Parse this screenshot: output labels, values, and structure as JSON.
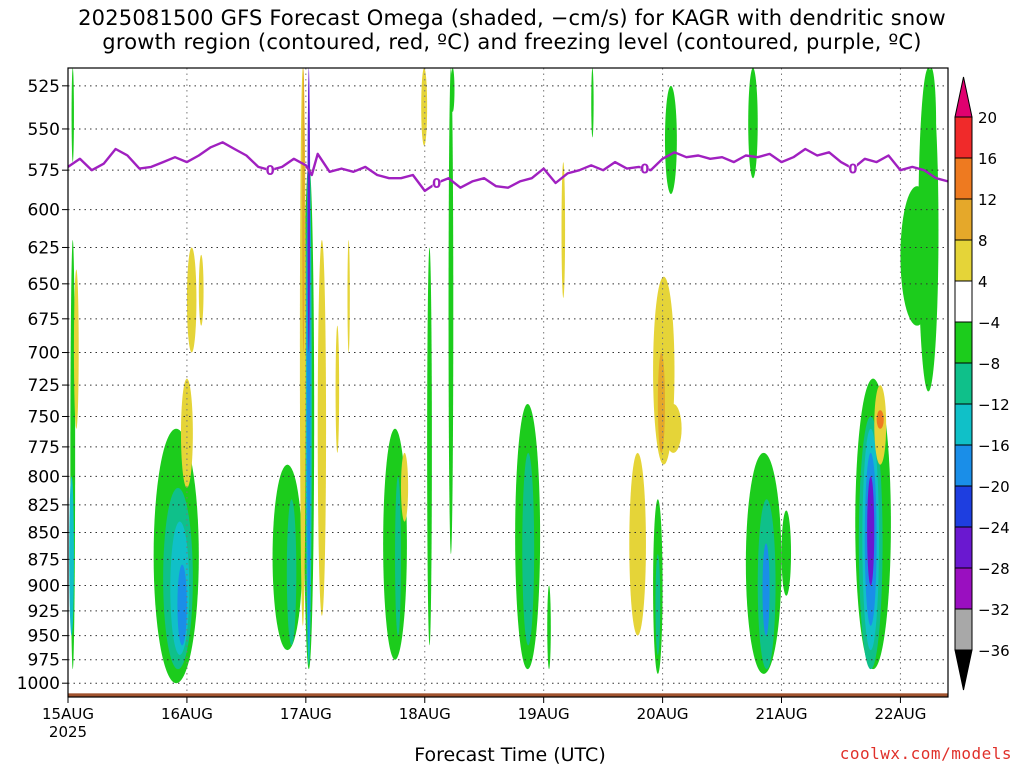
{
  "title_line1": "2025081500 GFS Forecast Omega (shaded, −cm/s) for KAGR with dendritic snow",
  "title_line2": "growth region (contoured, red, ºC) and freezing level (contoured, purple, ºC)",
  "credit": "coolwx.com/models",
  "chart_data": {
    "type": "heatmap",
    "xlabel": "Forecast Time (UTC)",
    "ylabel": "",
    "x_ticks": [
      "15AUG",
      "16AUG",
      "17AUG",
      "18AUG",
      "19AUG",
      "20AUG",
      "21AUG",
      "22AUG"
    ],
    "x_year": "2025",
    "xlim_days": [
      0,
      7.4
    ],
    "y_ticks": [
      525,
      550,
      575,
      600,
      625,
      650,
      675,
      700,
      725,
      750,
      775,
      800,
      825,
      850,
      875,
      900,
      925,
      950,
      975,
      1000
    ],
    "ylim_hPa": [
      515,
      1015
    ],
    "y_scale": "log-pressure",
    "grid": true,
    "colorbar": {
      "levels": [
        "20",
        "16",
        "12",
        "8",
        "4",
        "−4",
        "−8",
        "−12",
        "−16",
        "−20",
        "−24",
        "−28",
        "−32",
        "−36"
      ],
      "colors": [
        "#e0006f",
        "#f02a2a",
        "#ee7a20",
        "#e5a82a",
        "#e5d438",
        "#ffffff",
        "#1ccc1c",
        "#0fc08a",
        "#10c0c8",
        "#1a8ee8",
        "#1e3ee0",
        "#6a18d0",
        "#9a0fc0",
        "#a8a8a8",
        "#000000"
      ]
    },
    "freezing_level": {
      "color": "#a020c0",
      "label": "0",
      "label_days": [
        1.7,
        3.1,
        4.85,
        6.6
      ],
      "points": [
        [
          0.0,
          573
        ],
        [
          0.1,
          568
        ],
        [
          0.2,
          575
        ],
        [
          0.3,
          571
        ],
        [
          0.4,
          562
        ],
        [
          0.5,
          566
        ],
        [
          0.6,
          574
        ],
        [
          0.7,
          573
        ],
        [
          0.8,
          570
        ],
        [
          0.9,
          567
        ],
        [
          1.0,
          570
        ],
        [
          1.1,
          566
        ],
        [
          1.2,
          561
        ],
        [
          1.3,
          558
        ],
        [
          1.4,
          562
        ],
        [
          1.5,
          566
        ],
        [
          1.6,
          573
        ],
        [
          1.7,
          575
        ],
        [
          1.8,
          573
        ],
        [
          1.9,
          568
        ],
        [
          2.0,
          572
        ],
        [
          2.05,
          578
        ],
        [
          2.1,
          565
        ],
        [
          2.2,
          576
        ],
        [
          2.3,
          574
        ],
        [
          2.4,
          576
        ],
        [
          2.5,
          573
        ],
        [
          2.6,
          578
        ],
        [
          2.7,
          580
        ],
        [
          2.8,
          580
        ],
        [
          2.9,
          578
        ],
        [
          3.0,
          588
        ],
        [
          3.1,
          583
        ],
        [
          3.2,
          580
        ],
        [
          3.3,
          586
        ],
        [
          3.4,
          582
        ],
        [
          3.5,
          580
        ],
        [
          3.6,
          585
        ],
        [
          3.7,
          586
        ],
        [
          3.8,
          582
        ],
        [
          3.9,
          580
        ],
        [
          4.0,
          574
        ],
        [
          4.1,
          583
        ],
        [
          4.2,
          577
        ],
        [
          4.3,
          575
        ],
        [
          4.4,
          572
        ],
        [
          4.5,
          575
        ],
        [
          4.6,
          570
        ],
        [
          4.7,
          574
        ],
        [
          4.8,
          573
        ],
        [
          4.9,
          575
        ],
        [
          5.0,
          568
        ],
        [
          5.1,
          564
        ],
        [
          5.2,
          567
        ],
        [
          5.3,
          566
        ],
        [
          5.4,
          568
        ],
        [
          5.5,
          567
        ],
        [
          5.6,
          570
        ],
        [
          5.7,
          566
        ],
        [
          5.8,
          567
        ],
        [
          5.9,
          565
        ],
        [
          6.0,
          570
        ],
        [
          6.1,
          567
        ],
        [
          6.2,
          562
        ],
        [
          6.3,
          566
        ],
        [
          6.4,
          564
        ],
        [
          6.5,
          570
        ],
        [
          6.6,
          574
        ],
        [
          6.7,
          568
        ],
        [
          6.8,
          570
        ],
        [
          6.9,
          566
        ],
        [
          7.0,
          575
        ],
        [
          7.1,
          573
        ],
        [
          7.2,
          575
        ],
        [
          7.3,
          580
        ],
        [
          7.4,
          582
        ]
      ]
    },
    "omega_features": [
      {
        "c": "#1ccc1c",
        "x0": 0.02,
        "x1": 0.06,
        "p0": 620,
        "p1": 985
      },
      {
        "c": "#1ccc1c",
        "x0": 0.03,
        "x1": 0.05,
        "p0": 515,
        "p1": 570
      },
      {
        "c": "#10c0c8",
        "x0": 0.01,
        "x1": 0.05,
        "p0": 800,
        "p1": 950
      },
      {
        "c": "#e5d438",
        "x0": 0.05,
        "x1": 0.09,
        "p0": 640,
        "p1": 760
      },
      {
        "c": "#1ccc1c",
        "x0": 0.72,
        "x1": 1.1,
        "p0": 760,
        "p1": 1000
      },
      {
        "c": "#0fc08a",
        "x0": 0.8,
        "x1": 1.05,
        "p0": 810,
        "p1": 985
      },
      {
        "c": "#10c0c8",
        "x0": 0.86,
        "x1": 1.02,
        "p0": 840,
        "p1": 970
      },
      {
        "c": "#1a8ee8",
        "x0": 0.92,
        "x1": 1.0,
        "p0": 880,
        "p1": 960
      },
      {
        "c": "#e5d438",
        "x0": 1.0,
        "x1": 1.08,
        "p0": 625,
        "p1": 700
      },
      {
        "c": "#e5d438",
        "x0": 1.1,
        "x1": 1.14,
        "p0": 630,
        "p1": 680
      },
      {
        "c": "#e5d438",
        "x0": 0.95,
        "x1": 1.05,
        "p0": 720,
        "p1": 810
      },
      {
        "c": "#1ccc1c",
        "x0": 1.72,
        "x1": 1.97,
        "p0": 790,
        "p1": 965
      },
      {
        "c": "#0fc08a",
        "x0": 1.84,
        "x1": 1.92,
        "p0": 820,
        "p1": 960
      },
      {
        "c": "#1ccc1c",
        "x0": 1.98,
        "x1": 2.07,
        "p0": 570,
        "p1": 985
      },
      {
        "c": "#10c0c8",
        "x0": 2.0,
        "x1": 2.05,
        "p0": 560,
        "p1": 980
      },
      {
        "c": "#1a8ee8",
        "x0": 2.01,
        "x1": 2.04,
        "p0": 520,
        "p1": 960
      },
      {
        "c": "#6a18d0",
        "x0": 2.015,
        "x1": 2.035,
        "p0": 515,
        "p1": 700
      },
      {
        "c": "#e5d438",
        "x0": 1.95,
        "x1": 2.0,
        "p0": 515,
        "p1": 940
      },
      {
        "c": "#e5a82a",
        "x0": 1.97,
        "x1": 1.99,
        "p0": 515,
        "p1": 700
      },
      {
        "c": "#e5d438",
        "x0": 2.1,
        "x1": 2.17,
        "p0": 620,
        "p1": 930
      },
      {
        "c": "#e5d438",
        "x0": 2.25,
        "x1": 2.28,
        "p0": 680,
        "p1": 780
      },
      {
        "c": "#e5d438",
        "x0": 2.35,
        "x1": 2.37,
        "p0": 620,
        "p1": 700
      },
      {
        "c": "#1ccc1c",
        "x0": 2.65,
        "x1": 2.85,
        "p0": 760,
        "p1": 975
      },
      {
        "c": "#0fc08a",
        "x0": 2.75,
        "x1": 2.8,
        "p0": 800,
        "p1": 950
      },
      {
        "c": "#e5d438",
        "x0": 2.8,
        "x1": 2.86,
        "p0": 780,
        "p1": 840
      },
      {
        "c": "#e5d438",
        "x0": 2.97,
        "x1": 3.02,
        "p0": 515,
        "p1": 560
      },
      {
        "c": "#1ccc1c",
        "x0": 3.02,
        "x1": 3.06,
        "p0": 625,
        "p1": 960
      },
      {
        "c": "#1ccc1c",
        "x0": 3.2,
        "x1": 3.24,
        "p0": 515,
        "p1": 870
      },
      {
        "c": "#1ccc1c",
        "x0": 3.22,
        "x1": 3.25,
        "p0": 515,
        "p1": 540
      },
      {
        "c": "#1ccc1c",
        "x0": 3.76,
        "x1": 3.97,
        "p0": 740,
        "p1": 985
      },
      {
        "c": "#0fc08a",
        "x0": 3.82,
        "x1": 3.92,
        "p0": 780,
        "p1": 960
      },
      {
        "c": "#1ccc1c",
        "x0": 4.03,
        "x1": 4.06,
        "p0": 900,
        "p1": 985
      },
      {
        "c": "#e5d438",
        "x0": 4.15,
        "x1": 4.18,
        "p0": 570,
        "p1": 660
      },
      {
        "c": "#1ccc1c",
        "x0": 4.4,
        "x1": 4.42,
        "p0": 515,
        "p1": 555
      },
      {
        "c": "#e5d438",
        "x0": 4.72,
        "x1": 4.86,
        "p0": 780,
        "p1": 950
      },
      {
        "c": "#e5d438",
        "x0": 4.92,
        "x1": 5.1,
        "p0": 645,
        "p1": 790
      },
      {
        "c": "#e5a82a",
        "x0": 4.96,
        "x1": 5.02,
        "p0": 700,
        "p1": 780
      },
      {
        "c": "#e5d438",
        "x0": 5.02,
        "x1": 5.16,
        "p0": 740,
        "p1": 780
      },
      {
        "c": "#1ccc1c",
        "x0": 4.92,
        "x1": 5.0,
        "p0": 820,
        "p1": 990
      },
      {
        "c": "#0fc08a",
        "x0": 4.94,
        "x1": 4.98,
        "p0": 870,
        "p1": 970
      },
      {
        "c": "#1ccc1c",
        "x0": 5.02,
        "x1": 5.12,
        "p0": 525,
        "p1": 590
      },
      {
        "c": "#1ccc1c",
        "x0": 5.7,
        "x1": 6.0,
        "p0": 780,
        "p1": 990
      },
      {
        "c": "#0fc08a",
        "x0": 5.8,
        "x1": 5.95,
        "p0": 820,
        "p1": 985
      },
      {
        "c": "#1a8ee8",
        "x0": 5.84,
        "x1": 5.9,
        "p0": 860,
        "p1": 950
      },
      {
        "c": "#1ccc1c",
        "x0": 6.0,
        "x1": 6.08,
        "p0": 830,
        "p1": 910
      },
      {
        "c": "#1ccc1c",
        "x0": 5.72,
        "x1": 5.8,
        "p0": 515,
        "p1": 580
      },
      {
        "c": "#1ccc1c",
        "x0": 6.62,
        "x1": 6.92,
        "p0": 720,
        "p1": 985
      },
      {
        "c": "#0fc08a",
        "x0": 6.65,
        "x1": 6.85,
        "p0": 750,
        "p1": 985
      },
      {
        "c": "#10c0c8",
        "x0": 6.68,
        "x1": 6.82,
        "p0": 760,
        "p1": 965
      },
      {
        "c": "#1a8ee8",
        "x0": 6.7,
        "x1": 6.8,
        "p0": 780,
        "p1": 940
      },
      {
        "c": "#6a18d0",
        "x0": 6.72,
        "x1": 6.78,
        "p0": 800,
        "p1": 900
      },
      {
        "c": "#e5d438",
        "x0": 6.78,
        "x1": 6.88,
        "p0": 725,
        "p1": 790
      },
      {
        "c": "#ee7a20",
        "x0": 6.8,
        "x1": 6.86,
        "p0": 745,
        "p1": 760
      },
      {
        "c": "#1ccc1c",
        "x0": 7.0,
        "x1": 7.28,
        "p0": 585,
        "p1": 680
      },
      {
        "c": "#1ccc1c",
        "x0": 7.15,
        "x1": 7.32,
        "p0": 515,
        "p1": 730
      },
      {
        "c": "#1ccc1c",
        "x0": 7.22,
        "x1": 7.3,
        "p0": 515,
        "p1": 580
      }
    ],
    "terrain": {
      "color": "#a0522d",
      "p_top": 1011
    }
  }
}
